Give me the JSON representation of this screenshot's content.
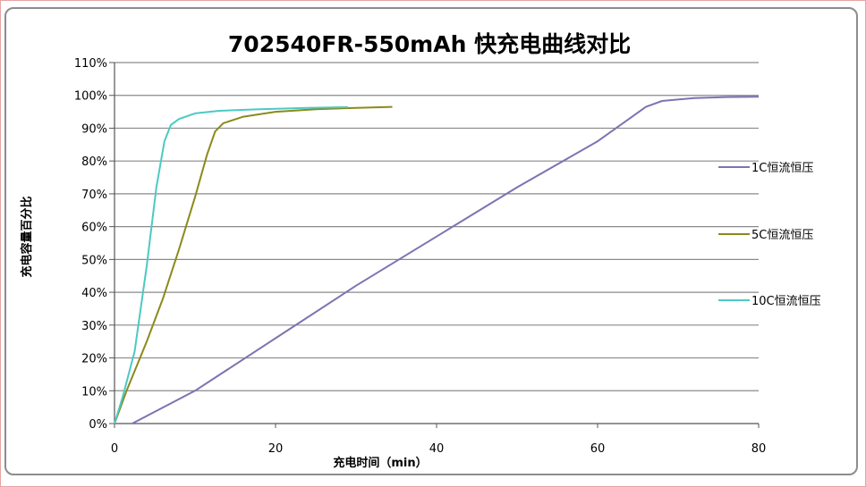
{
  "chart_data": {
    "type": "line",
    "title": "702540FR-550mAh 快充电曲线对比",
    "xlabel": "充电时间（min）",
    "ylabel": "充电容量百分比",
    "xlim": [
      0,
      80
    ],
    "ylim": [
      0,
      110
    ],
    "x_ticks": [
      "0",
      "20",
      "40",
      "60",
      "80"
    ],
    "y_ticks": [
      "0%",
      "10%",
      "20%",
      "30%",
      "40%",
      "50%",
      "60%",
      "70%",
      "80%",
      "90%",
      "100%",
      "110%"
    ],
    "grid": true,
    "legend_position": "right",
    "series": [
      {
        "name": "1C恒流恒压",
        "color": "#7b74b2",
        "points": [
          [
            2.2,
            0
          ],
          [
            10,
            10
          ],
          [
            20,
            26
          ],
          [
            30,
            42
          ],
          [
            40,
            57
          ],
          [
            50,
            72
          ],
          [
            60,
            86
          ],
          [
            64,
            93
          ],
          [
            66,
            96.5
          ],
          [
            68,
            98.3
          ],
          [
            72,
            99.2
          ],
          [
            76,
            99.5
          ],
          [
            80,
            99.6
          ]
        ]
      },
      {
        "name": "5C恒流恒压",
        "color": "#8b8a1a",
        "points": [
          [
            0,
            0
          ],
          [
            1.5,
            10
          ],
          [
            4,
            25
          ],
          [
            6,
            38
          ],
          [
            8,
            53
          ],
          [
            10,
            69
          ],
          [
            11.5,
            82
          ],
          [
            12.5,
            89
          ],
          [
            13.5,
            91.5
          ],
          [
            16,
            93.5
          ],
          [
            20,
            95
          ],
          [
            25,
            95.8
          ],
          [
            30,
            96.2
          ],
          [
            34.5,
            96.5
          ]
        ]
      },
      {
        "name": "10C恒流恒压",
        "color": "#4cc9c4",
        "points": [
          [
            0,
            0
          ],
          [
            1,
            8
          ],
          [
            2.5,
            22
          ],
          [
            4,
            48
          ],
          [
            5.2,
            72
          ],
          [
            6.2,
            86
          ],
          [
            7,
            91
          ],
          [
            8,
            92.8
          ],
          [
            10,
            94.5
          ],
          [
            13,
            95.3
          ],
          [
            18,
            95.8
          ],
          [
            24,
            96.2
          ],
          [
            29,
            96.4
          ]
        ]
      }
    ]
  }
}
